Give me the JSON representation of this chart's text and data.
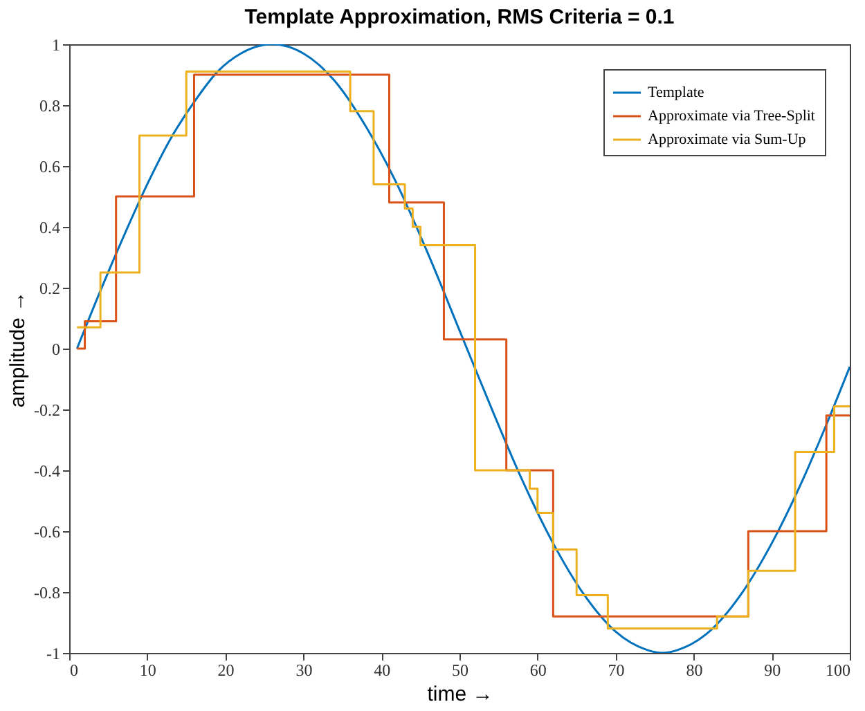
{
  "chart_data": {
    "type": "line",
    "title": "Template Approximation, RMS Criteria = 0.1",
    "xlabel": "time →",
    "ylabel": "amplitude →",
    "xlim": [
      0,
      100
    ],
    "xticks": [
      0,
      10,
      20,
      30,
      40,
      50,
      60,
      70,
      80,
      90,
      100
    ],
    "ylim": [
      -1,
      1
    ],
    "yticks": [
      -1,
      -0.8,
      -0.6,
      -0.4,
      -0.2,
      0,
      0.2,
      0.4,
      0.6,
      0.8,
      1
    ],
    "grid": false,
    "legend": "top right",
    "marker": "none",
    "line_style": "solid",
    "series": [
      {
        "name": "Template",
        "color": "#0072bd",
        "type": "line",
        "x": [
          1,
          4,
          7,
          10,
          13,
          16,
          19,
          22,
          26,
          30,
          34,
          38,
          42,
          46,
          50,
          54,
          58,
          62,
          66,
          70,
          74,
          76,
          78,
          82,
          86,
          90,
          94,
          97,
          100
        ],
        "values": [
          0,
          0.19,
          0.37,
          0.54,
          0.69,
          0.81,
          0.91,
          0.97,
          1,
          0.97,
          0.88,
          0.73,
          0.54,
          0.31,
          0.06,
          -0.19,
          -0.43,
          -0.64,
          -0.81,
          -0.93,
          -0.99,
          -1,
          -0.99,
          -0.93,
          -0.81,
          -0.64,
          -0.43,
          -0.25,
          -0.06
        ]
      },
      {
        "name": "Approximate via Tree-Split",
        "color": "#d95319",
        "type": "step",
        "x": [
          1,
          2,
          6,
          16,
          41,
          48,
          56,
          62,
          87,
          97,
          100
        ],
        "values": [
          0,
          0.09,
          0.5,
          0.9,
          0.48,
          0.03,
          -0.4,
          -0.88,
          -0.6,
          -0.22,
          -0.22
        ]
      },
      {
        "name": "Approximate via Sum-Up",
        "color": "#edb120",
        "type": "step",
        "x": [
          1,
          4,
          9,
          15,
          36,
          39,
          43,
          44,
          45,
          52,
          59,
          60,
          62,
          65,
          69,
          83,
          87,
          93,
          98,
          100
        ],
        "values": [
          0.07,
          0.25,
          0.7,
          0.91,
          0.78,
          0.54,
          0.46,
          0.4,
          0.34,
          -0.4,
          -0.46,
          -0.54,
          -0.66,
          -0.81,
          -0.92,
          -0.88,
          -0.73,
          -0.34,
          -0.19,
          -0.19
        ]
      }
    ]
  }
}
